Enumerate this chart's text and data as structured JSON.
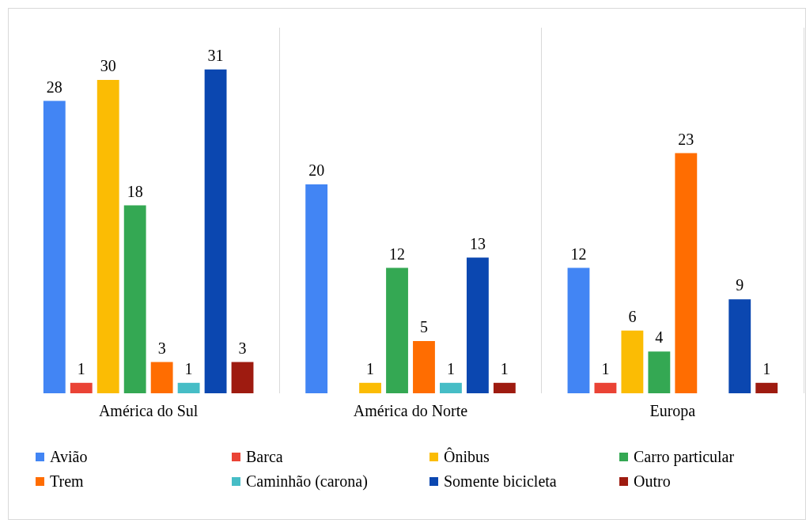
{
  "chart_data": {
    "type": "bar",
    "categories": [
      "América do Sul",
      "América do Norte",
      "Europa"
    ],
    "series": [
      {
        "name": "Avião",
        "color": "#4285f4",
        "values": [
          28,
          20,
          12
        ]
      },
      {
        "name": "Barca",
        "color": "#ea4335",
        "values": [
          1,
          null,
          1
        ]
      },
      {
        "name": "Ônibus",
        "color": "#fbbc04",
        "values": [
          30,
          1,
          6
        ]
      },
      {
        "name": "Carro particular",
        "color": "#34a853",
        "values": [
          18,
          12,
          4
        ]
      },
      {
        "name": "Trem",
        "color": "#ff6d01",
        "values": [
          3,
          5,
          23
        ]
      },
      {
        "name": "Caminhão (carona)",
        "color": "#46bdc6",
        "values": [
          1,
          1,
          null
        ]
      },
      {
        "name": "Somente bicicleta",
        "color": "#0b47b0",
        "values": [
          31,
          13,
          9
        ]
      },
      {
        "name": "Outro",
        "color": "#9e1b10",
        "values": [
          3,
          1,
          1
        ]
      }
    ],
    "ylim": [
      0,
      35
    ],
    "tick_labels": "x",
    "grid": "x",
    "legend": "bottom",
    "data_labels": true
  }
}
